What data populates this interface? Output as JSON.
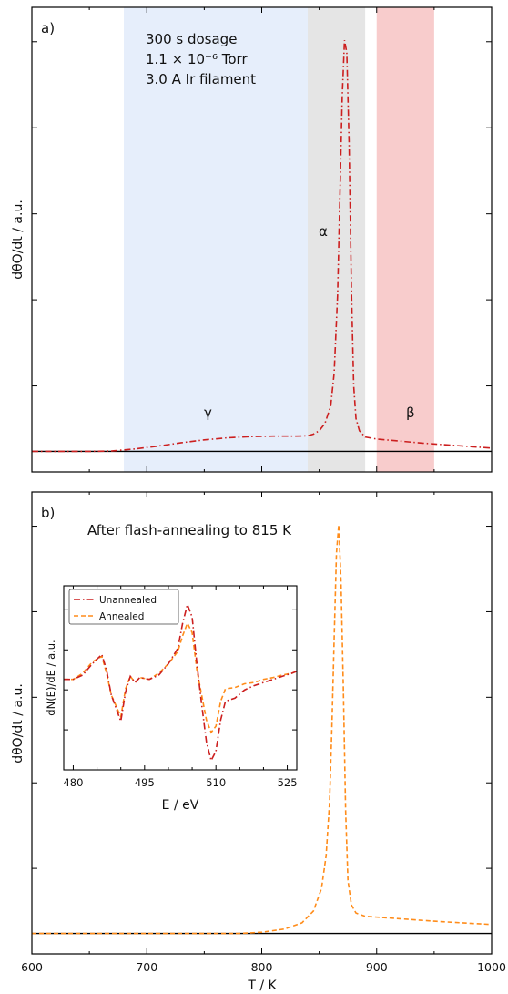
{
  "chart_data": [
    {
      "type": "line",
      "panel_label": "a)",
      "ylabel": "dθO/dt / a.u.",
      "xlim": [
        600,
        1000
      ],
      "yticks_labeled": false,
      "annotations": [
        "300 s dosage",
        "1.1 × 10⁻⁶ Torr",
        "3.0 A Ir filament"
      ],
      "regions": [
        {
          "name": "γ",
          "from": 680,
          "to": 840,
          "color": "#e6eefb"
        },
        {
          "name": "α",
          "from": 840,
          "to": 890,
          "color": "#e5e5e5"
        },
        {
          "name": "β",
          "from": 900,
          "to": 950,
          "color": "#f8cccc"
        }
      ],
      "baseline_y": 0,
      "ylim": [
        -0.05,
        1.08
      ],
      "series": [
        {
          "style": "dash-dot",
          "color": "#cc1f1f",
          "x": [
            600,
            650,
            670,
            690,
            710,
            730,
            750,
            770,
            790,
            810,
            830,
            840,
            845,
            850,
            855,
            860,
            863,
            866,
            868,
            870,
            872,
            874,
            876,
            878,
            880,
            882,
            885,
            890,
            900,
            920,
            940,
            960,
            980,
            1000
          ],
          "y": [
            0.0,
            0.0,
            0.001,
            0.006,
            0.013,
            0.021,
            0.028,
            0.033,
            0.036,
            0.037,
            0.037,
            0.038,
            0.042,
            0.05,
            0.068,
            0.11,
            0.19,
            0.38,
            0.62,
            0.86,
            1.0,
            0.97,
            0.75,
            0.4,
            0.16,
            0.08,
            0.05,
            0.035,
            0.03,
            0.025,
            0.02,
            0.016,
            0.012,
            0.008
          ]
        }
      ]
    },
    {
      "type": "line",
      "panel_label": "b)",
      "ylabel": "dθO/dt / a.u.",
      "xlabel": "T / K",
      "xlim": [
        600,
        1000
      ],
      "xticks": [
        600,
        700,
        800,
        900,
        1000
      ],
      "yticks_labeled": false,
      "annotations": [
        "After flash-annealing to 815 K"
      ],
      "baseline_y": 0,
      "ylim": [
        -0.05,
        1.08
      ],
      "series": [
        {
          "style": "dashed",
          "color": "#ff8c1a",
          "x": [
            600,
            700,
            780,
            800,
            820,
            835,
            845,
            852,
            856,
            859,
            861,
            863,
            865,
            867,
            869,
            871,
            873,
            875,
            878,
            882,
            890,
            900,
            920,
            950,
            980,
            1000
          ],
          "y": [
            0.0,
            0.0,
            0.0,
            0.003,
            0.011,
            0.026,
            0.055,
            0.11,
            0.19,
            0.32,
            0.5,
            0.72,
            0.93,
            1.0,
            0.86,
            0.6,
            0.3,
            0.13,
            0.07,
            0.05,
            0.042,
            0.04,
            0.036,
            0.03,
            0.025,
            0.022
          ]
        }
      ],
      "inset": {
        "type": "line",
        "xlabel": "E / eV",
        "ylabel": "dN(E)/dE / a.u.",
        "xlim": [
          478,
          527
        ],
        "xticks": [
          480,
          495,
          510,
          525
        ],
        "ylim": [
          -1.4,
          1.55
        ],
        "legend_position": "top-left",
        "series": [
          {
            "name": "Unannealed",
            "style": "dash-dot",
            "color": "#cc1f1f",
            "x": [
              478,
              480,
              482,
              484,
              486,
              487,
              488,
              490,
              491,
              492,
              493,
              494,
              496,
              498,
              500,
              502,
              503,
              504,
              505,
              506,
              507,
              508,
              509,
              510,
              511,
              512,
              514,
              516,
              518,
              520,
              522,
              524,
              526,
              527
            ],
            "y": [
              0.05,
              0.05,
              0.12,
              0.3,
              0.45,
              0.2,
              -0.2,
              -0.62,
              -0.15,
              0.1,
              0.0,
              0.08,
              0.05,
              0.12,
              0.3,
              0.55,
              0.95,
              1.25,
              1.05,
              0.3,
              -0.35,
              -0.95,
              -1.25,
              -1.1,
              -0.6,
              -0.3,
              -0.25,
              -0.12,
              -0.05,
              0.0,
              0.05,
              0.1,
              0.15,
              0.18
            ]
          },
          {
            "name": "Annealed",
            "style": "dashed",
            "color": "#ff8c1a",
            "x": [
              478,
              480,
              482,
              484,
              486,
              487,
              488,
              490,
              491,
              492,
              493,
              494,
              496,
              498,
              500,
              502,
              503,
              504,
              505,
              506,
              507,
              508,
              509,
              510,
              511,
              512,
              514,
              516,
              518,
              520,
              522,
              524,
              526,
              527
            ],
            "y": [
              0.05,
              0.05,
              0.15,
              0.33,
              0.42,
              0.15,
              -0.2,
              -0.55,
              -0.1,
              0.1,
              0.0,
              0.08,
              0.05,
              0.15,
              0.3,
              0.5,
              0.75,
              0.95,
              0.8,
              0.2,
              -0.2,
              -0.6,
              -0.8,
              -0.7,
              -0.3,
              -0.1,
              -0.08,
              -0.02,
              0.0,
              0.05,
              0.08,
              0.12,
              0.15,
              0.18
            ]
          }
        ]
      }
    }
  ]
}
